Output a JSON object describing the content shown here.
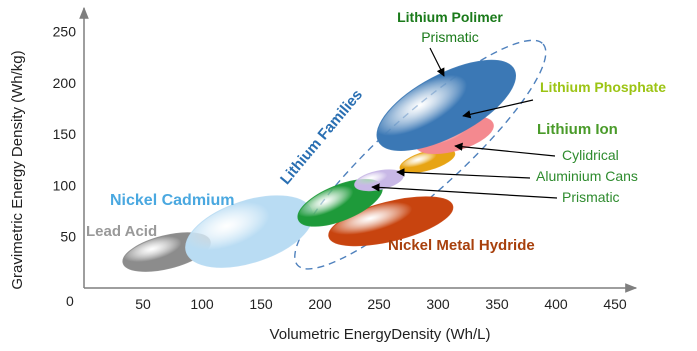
{
  "chart_data": {
    "type": "scatter",
    "title": "",
    "xlabel": "Volumetric EnergyDensity  (Wh/L)",
    "ylabel": "Gravimetric Energy Density (Wh/kg)",
    "xlim": [
      0,
      450
    ],
    "ylim": [
      0,
      260
    ],
    "x_ticks": [
      "50",
      "100",
      "150",
      "200",
      "250",
      "300",
      "350",
      "400",
      "450"
    ],
    "y_ticks": [
      "50",
      "100",
      "150",
      "200",
      "250"
    ],
    "origin_label": "0",
    "grid": false,
    "series": [
      {
        "name": "Lead Acid",
        "x_center": 70,
        "y_center": 35,
        "x_half": 38,
        "y_half": 16,
        "rotation": -14,
        "color": "#8c8c8c"
      },
      {
        "name": "Nickel Cadmium",
        "x_center": 140,
        "y_center": 55,
        "x_half": 56,
        "y_half": 30,
        "rotation": -18,
        "color": "#b9dcf3"
      },
      {
        "name": "Nickel Metal Hydride",
        "x_center": 260,
        "y_center": 65,
        "x_half": 54,
        "y_half": 19,
        "rotation": -14,
        "color": "#c8440f"
      },
      {
        "name": "Prismatic",
        "x_center": 217,
        "y_center": 83,
        "x_half": 38,
        "y_half": 17,
        "rotation": -22,
        "color": "#1e9a3a"
      },
      {
        "name": "Aluminium Cans",
        "x_center": 250,
        "y_center": 105,
        "x_half": 21,
        "y_half": 9,
        "rotation": -12,
        "color": "#c8b8e6"
      },
      {
        "name": "Cylidrical",
        "x_center": 291,
        "y_center": 124,
        "x_half": 24,
        "y_half": 9,
        "rotation": -16,
        "color": "#e7a414"
      },
      {
        "name": "Lithium Phosphate",
        "x_center": 314,
        "y_center": 149,
        "x_half": 34,
        "y_half": 15,
        "rotation": -16,
        "color": "#f4898f"
      },
      {
        "name": "Lithium Polimer",
        "x_center": 307,
        "y_center": 178,
        "x_half": 65,
        "y_half": 30,
        "rotation": -28,
        "color": "#3b78b5"
      }
    ],
    "annotations": [
      {
        "text": "Lithium Polimer",
        "color": "#1a7a1a",
        "bold": true
      },
      {
        "text": "Prismatic",
        "color": "#1a7a1a",
        "bold": false
      },
      {
        "text": "Lithium Phosphate",
        "color": "#9cc414",
        "bold": true
      },
      {
        "text": "Lithium Ion",
        "color": "#4a9b2a",
        "bold": true
      },
      {
        "text": "Cylidrical",
        "color": "#2e8b2e",
        "bold": false
      },
      {
        "text": "Aluminium Cans",
        "color": "#2e8b2e",
        "bold": false
      },
      {
        "text": "Prismatic",
        "color": "#2e8b2e",
        "bold": false
      },
      {
        "text": "Lithium Families",
        "color": "#2a6fb2",
        "bold": true
      },
      {
        "text": "Nickel Cadmium",
        "color": "#4aa8e0",
        "bold": true
      },
      {
        "text": "Lead Acid",
        "color": "#999999",
        "bold": true
      },
      {
        "text": "Nickel Metal Hydride",
        "color": "#a8400c",
        "bold": true
      }
    ],
    "lithium_family_envelope": {
      "x_center": 285,
      "y_center": 130,
      "x_half": 140,
      "y_half": 38,
      "rotation": -42,
      "color": "#4f81bd"
    }
  }
}
